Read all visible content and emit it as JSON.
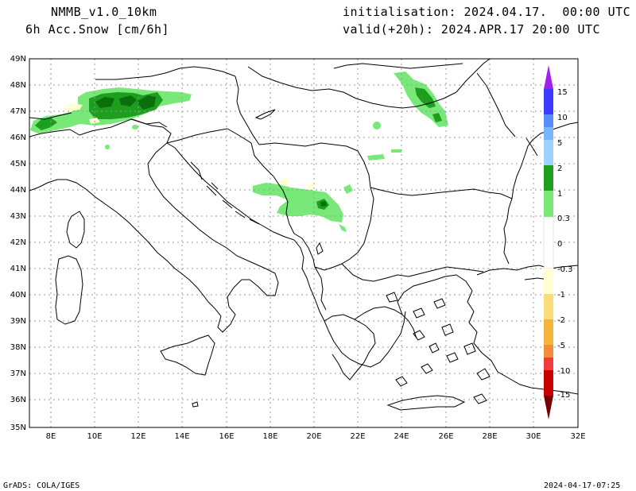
{
  "header": {
    "model": "NMMB_v1.0_10km",
    "field": "6h Acc.Snow [cm/6h]",
    "init": "initialisation: 2024.04.17.  00:00 UTC",
    "valid": "valid(+20h): 2024.APR.17 20:00 UTC"
  },
  "footer": {
    "credit": "GrADS: COLA/IGES",
    "timestamp": "2024-04-17-07:25"
  },
  "axes": {
    "lat_labels": [
      "49N",
      "48N",
      "47N",
      "46N",
      "45N",
      "44N",
      "43N",
      "42N",
      "41N",
      "40N",
      "39N",
      "38N",
      "37N",
      "36N",
      "35N"
    ],
    "lon_labels": [
      "8E",
      "10E",
      "12E",
      "14E",
      "16E",
      "18E",
      "20E",
      "22E",
      "24E",
      "26E",
      "28E",
      "30E",
      "32E"
    ]
  },
  "legend": {
    "labels": [
      "15",
      "10",
      "5",
      "2",
      "1",
      "0.3",
      "0",
      "-0.3",
      "-1",
      "-2",
      "-5",
      "-10",
      "-15"
    ],
    "colors": [
      "#a020f0",
      "#3c3cff",
      "#5a8cff",
      "#78b4ff",
      "#9ed2ff",
      "#1e9e1e",
      "#78e878",
      "#ffffff",
      "#ffffd2",
      "#fadc78",
      "#f5b43c",
      "#f58c3c",
      "#f03c3c",
      "#c80000",
      "#780000"
    ]
  },
  "snow_colors": {
    "light": "#78e878",
    "medium": "#1e9e1e",
    "heavy": "#0a6e0a",
    "trace": "#ffffd2"
  }
}
